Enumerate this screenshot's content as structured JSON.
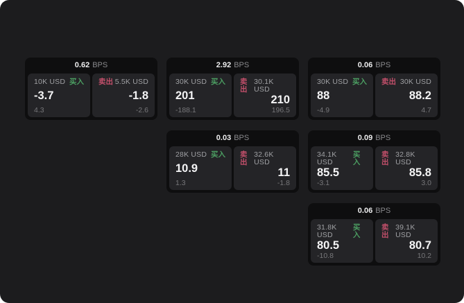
{
  "ui": {
    "bps_suffix": "BPS",
    "buy_label": "买入",
    "sell_label": "卖出"
  },
  "colors": {
    "background": "#1c1c1e",
    "card_bg": "#0e0e0f",
    "panel_bg": "#242427",
    "buy_green": "#4c9e62",
    "sell_red": "#c14f6a"
  },
  "cards": [
    {
      "bps": "0.62",
      "buy": {
        "amount": "10K USD",
        "value": "-3.7",
        "delta": "4.3"
      },
      "sell": {
        "amount": "5.5K USD",
        "value": "-1.8",
        "delta": "-2.6"
      }
    },
    {
      "bps": "2.92",
      "buy": {
        "amount": "30K USD",
        "value": "201",
        "delta": "-188.1"
      },
      "sell": {
        "amount": "30.1K USD",
        "value": "210",
        "delta": "196.5"
      }
    },
    {
      "bps": "0.06",
      "buy": {
        "amount": "30K USD",
        "value": "88",
        "delta": "-4.9"
      },
      "sell": {
        "amount": "30K USD",
        "value": "88.2",
        "delta": "4.7"
      }
    },
    {
      "bps": "0.03",
      "buy": {
        "amount": "28K USD",
        "value": "10.9",
        "delta": "1.3"
      },
      "sell": {
        "amount": "32.6K USD",
        "value": "11",
        "delta": "-1.8"
      }
    },
    {
      "bps": "0.09",
      "buy": {
        "amount": "34.1K USD",
        "value": "85.5",
        "delta": "-3.1"
      },
      "sell": {
        "amount": "32.8K USD",
        "value": "85.8",
        "delta": "3.0"
      }
    },
    {
      "bps": "0.06",
      "buy": {
        "amount": "31.8K USD",
        "value": "80.5",
        "delta": "-10.8"
      },
      "sell": {
        "amount": "39.1K USD",
        "value": "80.7",
        "delta": "10.2"
      }
    }
  ]
}
